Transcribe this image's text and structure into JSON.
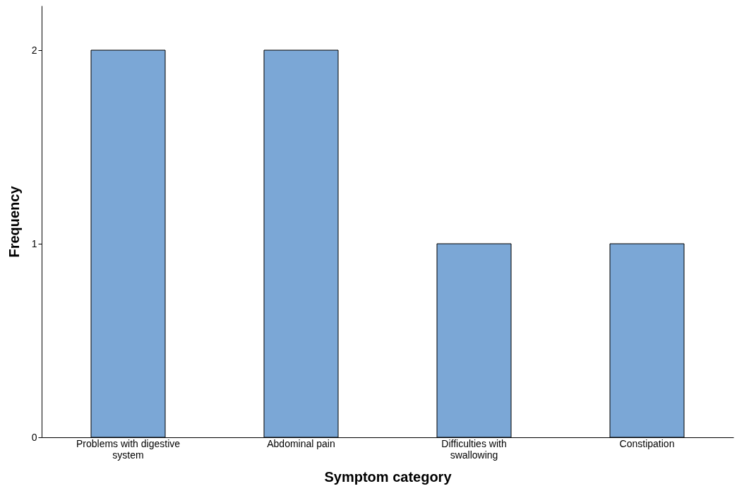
{
  "chart_data": {
    "type": "bar",
    "xlabel": "Symptom category",
    "ylabel": "Frequency",
    "categories": [
      "Problems with digestive system",
      "Abdominal pain",
      "Difficulties with swallowing",
      "Constipation"
    ],
    "values": [
      2,
      2,
      1,
      1
    ],
    "color": "#7ba7d6",
    "ylim": [
      0,
      2.23
    ],
    "yticks": [
      0,
      1,
      2
    ],
    "grid": false
  }
}
